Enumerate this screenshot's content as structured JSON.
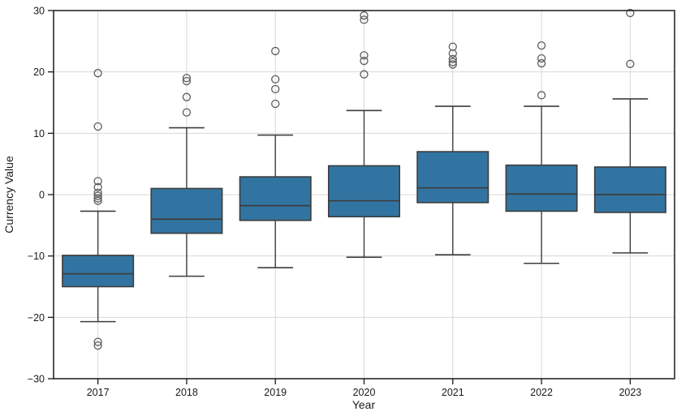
{
  "chart_data": {
    "type": "box",
    "xlabel": "Year",
    "ylabel": "Currency Value",
    "ylim": [
      -30,
      30
    ],
    "yticks": [
      -30,
      -20,
      -10,
      0,
      10,
      20,
      30
    ],
    "grid": true,
    "legend_position": "none",
    "categories": [
      "2017",
      "2018",
      "2019",
      "2020",
      "2021",
      "2022",
      "2023"
    ],
    "series": [
      {
        "category": "2017",
        "whisker_low": -20.7,
        "q1": -15.0,
        "median": -12.9,
        "q3": -9.9,
        "whisker_high": -2.7,
        "outliers": [
          19.8,
          11.1,
          2.2,
          1.2,
          0.3,
          -0.2,
          -0.6,
          -1.0,
          -24.0,
          -24.6
        ]
      },
      {
        "category": "2018",
        "whisker_low": -13.3,
        "q1": -6.3,
        "median": -4.0,
        "q3": 1.0,
        "whisker_high": 10.9,
        "outliers": [
          19.0,
          18.5,
          15.9,
          13.4
        ]
      },
      {
        "category": "2019",
        "whisker_low": -11.9,
        "q1": -4.2,
        "median": -1.8,
        "q3": 2.9,
        "whisker_high": 9.7,
        "outliers": [
          23.4,
          18.8,
          17.2,
          14.8
        ]
      },
      {
        "category": "2020",
        "whisker_low": -10.2,
        "q1": -3.6,
        "median": -1.0,
        "q3": 4.7,
        "whisker_high": 13.7,
        "outliers": [
          29.2,
          28.5,
          22.7,
          21.8,
          19.6
        ]
      },
      {
        "category": "2021",
        "whisker_low": -9.8,
        "q1": -1.3,
        "median": 1.1,
        "q3": 7.0,
        "whisker_high": 14.4,
        "outliers": [
          24.1,
          23.0,
          22.1,
          21.6,
          21.2
        ]
      },
      {
        "category": "2022",
        "whisker_low": -11.2,
        "q1": -2.7,
        "median": 0.1,
        "q3": 4.8,
        "whisker_high": 14.4,
        "outliers": [
          24.3,
          22.2,
          21.4,
          16.2
        ]
      },
      {
        "category": "2023",
        "whisker_low": -9.5,
        "q1": -2.9,
        "median": 0.0,
        "q3": 4.5,
        "whisker_high": 15.6,
        "outliers": [
          29.6,
          21.3
        ]
      }
    ],
    "colors": {
      "box_fill": "#3274a1",
      "box_edge": "#3d3d3d",
      "median": "#3d3d3d",
      "whisker": "#3d3d3d",
      "outlier_edge": "#5c5c5c",
      "grid": "#d8d8d8",
      "spine": "#1a1a1a",
      "text": "#1a1a1a",
      "background": "#ffffff"
    }
  }
}
